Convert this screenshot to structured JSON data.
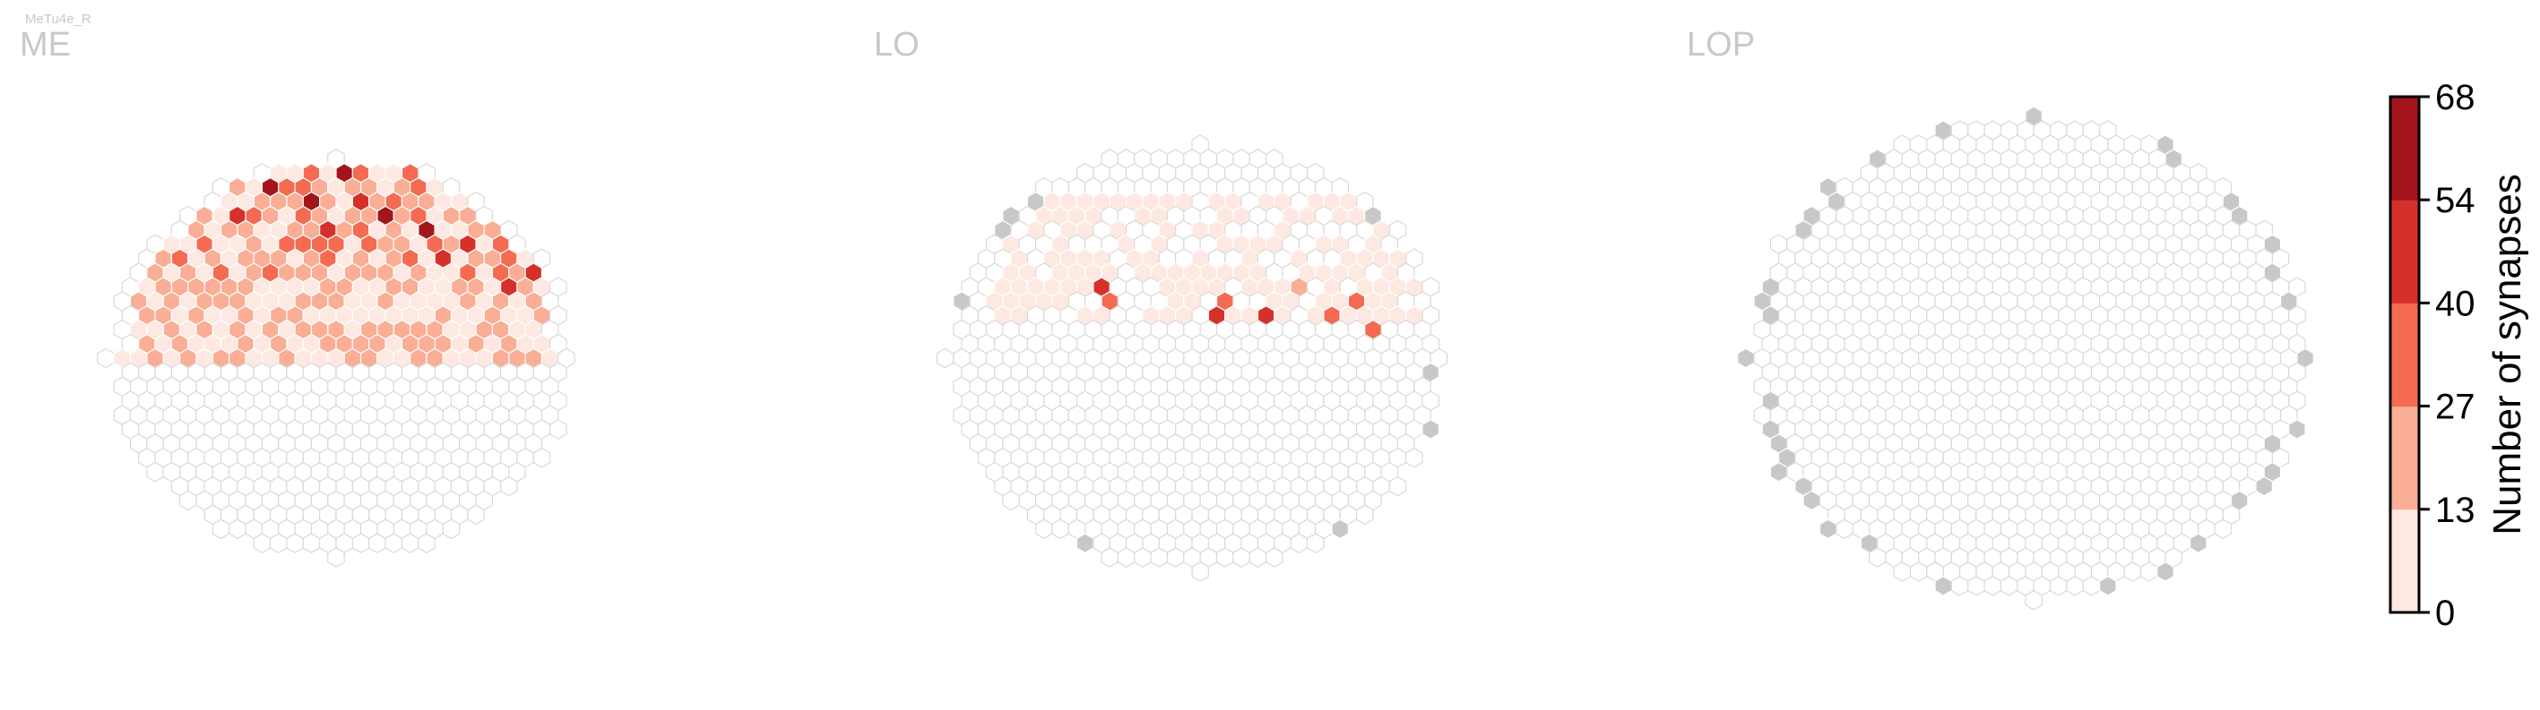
{
  "figure": {
    "supertitle": "MeTu4e_R"
  },
  "chart_data": {
    "type": "heatmap",
    "cell_shape": "hexagon",
    "neuron_type": "MeTu4e_R",
    "panels": [
      {
        "name": "ME",
        "radius": 14,
        "nonzero_region": {
          "rows_from_top": [
            0,
            14
          ],
          "intensity": [
            4,
            42,
            22,
            1.0
          ]
        },
        "hot_cells": [
          {
            "i": 0,
            "j": 13,
            "value": 68
          },
          {
            "i": -4,
            "j": 12,
            "value": 65
          },
          {
            "i": 5,
            "j": 9,
            "value": 60
          },
          {
            "i": -2,
            "j": 11,
            "value": 58
          },
          {
            "i": 3,
            "j": 10,
            "value": 55
          },
          {
            "i": -6,
            "j": 10,
            "value": 52
          },
          {
            "i": 8,
            "j": 8,
            "value": 50
          },
          {
            "i": 1,
            "j": 11,
            "value": 48
          },
          {
            "i": -1,
            "j": 9,
            "value": 46
          },
          {
            "i": 10,
            "j": 5,
            "value": 44
          },
          {
            "i": 12,
            "j": 6,
            "value": 45
          },
          {
            "i": 6,
            "j": 7,
            "value": 41
          },
          {
            "i": -3,
            "j": 8,
            "value": 38
          },
          {
            "i": 4,
            "j": 7,
            "value": 35
          }
        ],
        "gray_cells": []
      },
      {
        "name": "LO",
        "radius": 15,
        "nonzero_region": {
          "rows_from_top": [
            4,
            12
          ],
          "intensity": [
            3,
            12,
            4,
            0.6
          ]
        },
        "hot_cells": [
          {
            "i": -6,
            "j": 5,
            "value": 50
          },
          {
            "i": -5,
            "j": 4,
            "value": 38
          },
          {
            "i": 1,
            "j": 3,
            "value": 42
          },
          {
            "i": 2,
            "j": 4,
            "value": 35
          },
          {
            "i": 4,
            "j": 3,
            "value": 44
          },
          {
            "i": 10,
            "j": 4,
            "value": 36
          },
          {
            "i": 11,
            "j": 2,
            "value": 30
          },
          {
            "i": 8,
            "j": 3,
            "value": 28
          },
          {
            "i": 6,
            "j": 5,
            "value": 26
          }
        ],
        "gray_cells": "boundary:0.18"
      },
      {
        "name": "LOP",
        "radius": 17,
        "nonzero_region": null,
        "hot_cells": [],
        "gray_cells": "boundary:0.60"
      }
    ],
    "colorbar": {
      "label": "Number of synapses",
      "ticks": [
        "0",
        "13",
        "27",
        "40",
        "54",
        "68"
      ],
      "colors": [
        "#fde9e1",
        "#f9ae95",
        "#f46b52",
        "#d6302b",
        "#a3151a"
      ],
      "vmin": 0,
      "vmax": 68
    },
    "colors": {
      "empty_edge": "#d9d9d9",
      "empty_fill": "#ffffff",
      "gray_fill": "#c8c8c8",
      "title_gray": "#c8c8c8"
    }
  }
}
